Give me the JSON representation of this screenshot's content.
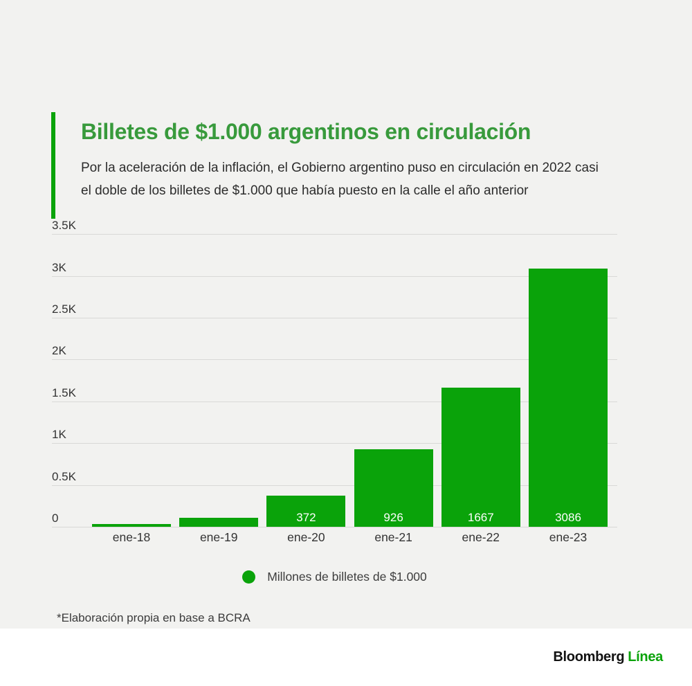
{
  "header": {
    "title": "Billetes de $1.000 argentinos en circulación",
    "subtitle_line1": "Por la aceleración de la inflación, el Gobierno argentino puso en circulación en 2022 casi",
    "subtitle_line2": "el doble de los billetes de $1.000 que había puesto en la calle el año anterior"
  },
  "chart_data": {
    "type": "bar",
    "title": "Billetes de $1.000 argentinos en circulación",
    "categories": [
      "ene-18",
      "ene-19",
      "ene-20",
      "ene-21",
      "ene-22",
      "ene-23"
    ],
    "values": [
      30,
      105,
      372,
      926,
      1667,
      3086
    ],
    "bar_value_labels": [
      "",
      "",
      "372",
      "926",
      "1667",
      "3086"
    ],
    "y_tick_labels": [
      "0",
      "0.5K",
      "1K",
      "1.5K",
      "2K",
      "2.5K",
      "3K",
      "3.5K"
    ],
    "y_tick_values": [
      0,
      500,
      1000,
      1500,
      2000,
      2500,
      3000,
      3500
    ],
    "ylim": [
      0,
      3500
    ],
    "grid": true,
    "legend": {
      "label": "Millones de billetes de $1.000",
      "position": "bottom",
      "marker": "circle"
    },
    "xlabel": "",
    "ylabel": ""
  },
  "footnote": "*Elaboración propia en base a BCRA",
  "footer": {
    "brand_primary": "Bloomberg",
    "brand_secondary": "Línea"
  },
  "colors": {
    "panel_background": "#f2f2f0",
    "footer_background": "#ffffff",
    "bar_green": "#0aa30a",
    "accent_green": "#0aa30a",
    "title_green": "#389a3c",
    "brand_green": "#0aa30a",
    "value_label_white": "#ffffff",
    "gridline": "#d9d9d7",
    "axis_text": "#333333"
  }
}
